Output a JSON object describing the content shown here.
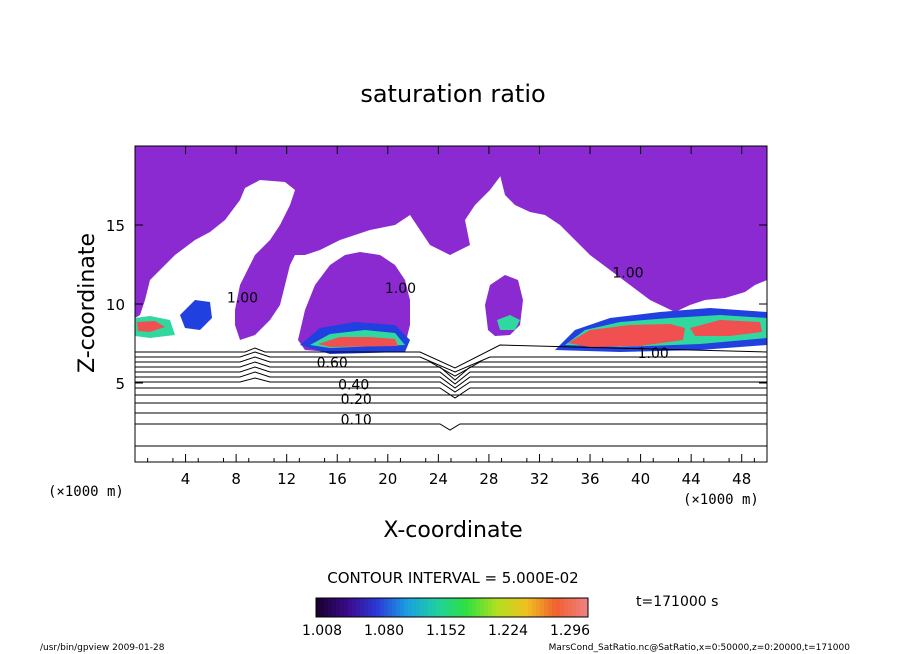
{
  "chart_data": {
    "type": "heatmap",
    "title": "saturation ratio",
    "xlabel": "X-coordinate",
    "ylabel": "Z-coordinate",
    "x_unit": "(×1000 m)",
    "y_unit": "(×1000 m)",
    "xlim": [
      0,
      50
    ],
    "ylim": [
      0,
      20
    ],
    "x_ticks": [
      4,
      8,
      12,
      16,
      20,
      24,
      28,
      32,
      36,
      40,
      44,
      48
    ],
    "y_ticks": [
      5,
      10,
      15
    ],
    "contour_interval_text": "CONTOUR INTERVAL = 5.000E-02",
    "time_text": "t=171000 s",
    "colorbar": {
      "ticks": [
        "1.008",
        "1.080",
        "1.152",
        "1.224",
        "1.296"
      ],
      "colors": [
        "#1a0033",
        "#3a0a8a",
        "#2a3ad8",
        "#1aa0e0",
        "#20d0a0",
        "#30e040",
        "#b0e020",
        "#f0c020",
        "#f06030",
        "#f08080"
      ]
    },
    "contour_labels": [
      {
        "text": "0.10",
        "x": 17.5,
        "z": 2.7
      },
      {
        "text": "0.20",
        "x": 17.5,
        "z": 4.0
      },
      {
        "text": "0.40",
        "x": 17.3,
        "z": 4.9
      },
      {
        "text": "0.60",
        "x": 15.6,
        "z": 6.3
      },
      {
        "text": "1.00",
        "x": 8.5,
        "z": 10.4
      },
      {
        "text": "1.00",
        "x": 21.0,
        "z": 11.0
      },
      {
        "text": "1.00",
        "x": 39.0,
        "z": 12.0
      },
      {
        "text": "1.00",
        "x": 41.0,
        "z": 6.9
      }
    ],
    "footer_left": "/usr/bin/gpview   2009-01-28",
    "footer_right": "MarsCond_SatRatio.nc@SatRatio,x=0:50000,z=0:20000,t=171000",
    "colors": {
      "supersat_region": "#8a2ad0",
      "low_band": "#2040e0",
      "mid_band": "#20c0e0",
      "high_band": "#40e040",
      "peak_band": "#f05050"
    }
  }
}
